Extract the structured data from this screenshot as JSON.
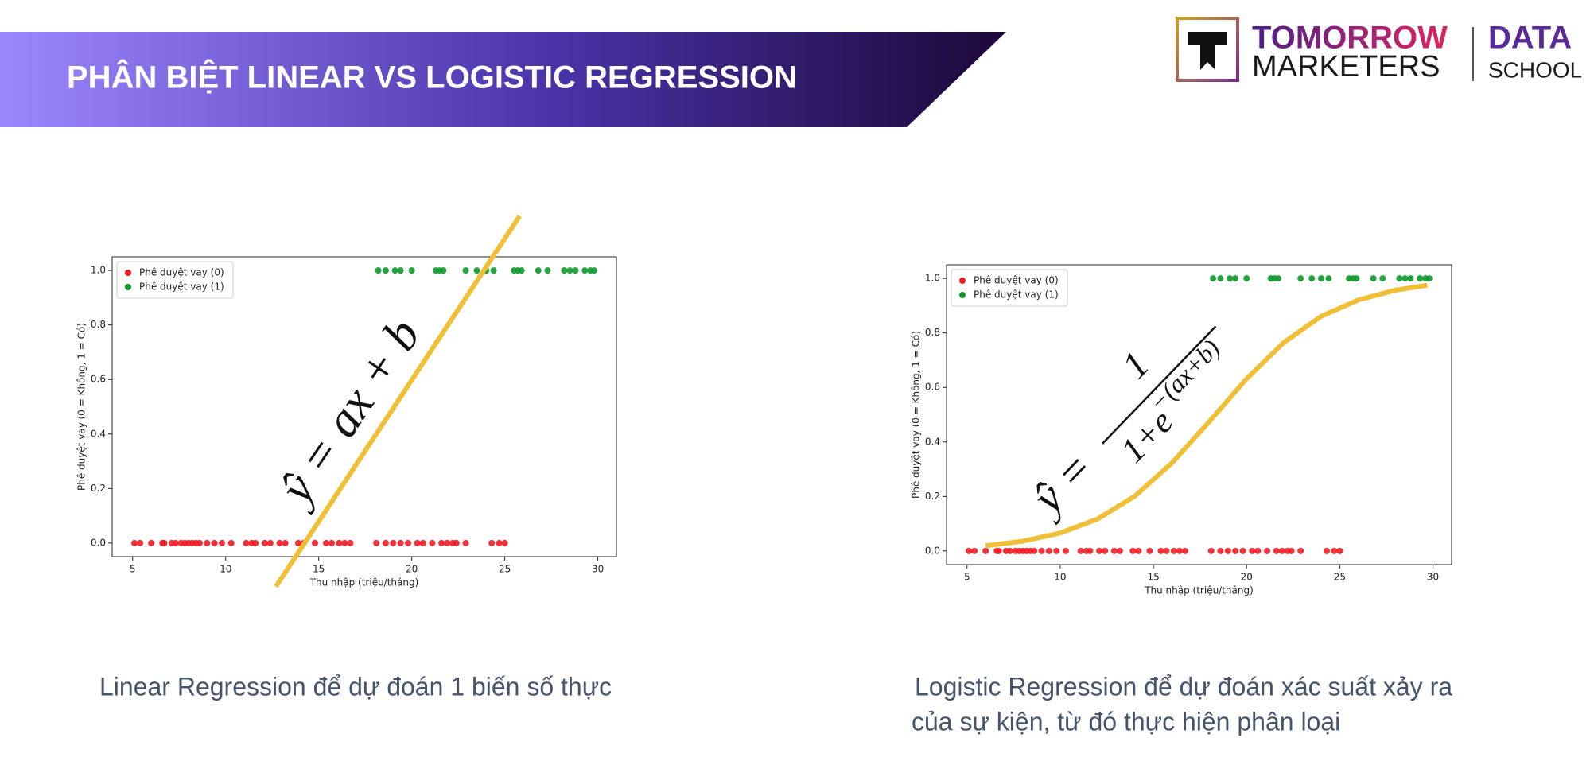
{
  "header": {
    "title": "PHÂN BIỆT LINEAR VS LOGISTIC REGRESSION"
  },
  "logo": {
    "line1": "TOMORROW",
    "line2": "MARKETERS",
    "side1": "DATA",
    "side2": "SCHOOL"
  },
  "captions": {
    "left": "Linear Regression để dự đoán 1 biến số thực",
    "right": [
      "Logistic Regression để dự đoán xác suất xảy ra",
      "của sự kiện, từ đó thực hiện phân loại"
    ]
  },
  "chart_data": [
    {
      "type": "scatter",
      "x_label": "Thu nhập (triệu/tháng)",
      "y_label": "Phê duyệt vay (0 = Không, 1 = Có)",
      "xlim": [
        3.9,
        31.0
      ],
      "ylim": [
        -0.05,
        1.05
      ],
      "xticks": [
        5,
        10,
        15,
        20,
        25,
        30
      ],
      "yticks": [
        {
          "value": 0,
          "label": "0.0"
        },
        {
          "value": 0.2,
          "label": "0.2"
        },
        {
          "value": 0.4,
          "label": "0.4"
        },
        {
          "value": 0.6,
          "label": "0.6"
        },
        {
          "value": 0.8,
          "label": "0.8"
        },
        {
          "value": 1,
          "label": "1.0"
        }
      ],
      "legend": "upper left",
      "annotation": {
        "text": "ŷ = ax + b"
      },
      "series": [
        {
          "name": "Phê duyệt vay (0)",
          "color": "#ee1c25",
          "type": "scatter",
          "x": [
            5.1,
            5.4,
            6.0,
            6.6,
            6.7,
            7.1,
            7.3,
            7.6,
            7.8,
            8.0,
            8.2,
            8.4,
            8.6,
            9.0,
            9.4,
            9.8,
            10.3,
            11.1,
            11.4,
            11.6,
            12.1,
            12.4,
            12.9,
            13.2,
            13.9,
            14.2,
            14.8,
            15.4,
            15.7,
            16.1,
            16.4,
            16.7,
            18.1,
            18.6,
            19.0,
            19.4,
            19.8,
            20.3,
            20.6,
            21.1,
            21.6,
            21.9,
            22.2,
            22.4,
            22.9,
            24.3,
            24.7,
            25.0
          ],
          "values": [
            0,
            0,
            0,
            0,
            0,
            0,
            0,
            0,
            0,
            0,
            0,
            0,
            0,
            0,
            0,
            0,
            0,
            0,
            0,
            0,
            0,
            0,
            0,
            0,
            0,
            0,
            0,
            0,
            0,
            0,
            0,
            0,
            0,
            0,
            0,
            0,
            0,
            0,
            0,
            0,
            0,
            0,
            0,
            0,
            0,
            0,
            0,
            0
          ]
        },
        {
          "name": "Phê duyệt vay (1)",
          "color": "#0b9a2a",
          "type": "scatter",
          "x": [
            18.2,
            18.6,
            19.1,
            19.4,
            20.0,
            21.3,
            21.5,
            21.7,
            22.9,
            23.5,
            24.0,
            24.4,
            25.5,
            25.7,
            25.9,
            26.8,
            27.3,
            28.2,
            28.5,
            28.8,
            29.3,
            29.6,
            29.8
          ],
          "values": [
            1,
            1,
            1,
            1,
            1,
            1,
            1,
            1,
            1,
            1,
            1,
            1,
            1,
            1,
            1,
            1,
            1,
            1,
            1,
            1,
            1,
            1,
            1
          ]
        },
        {
          "color": "#f0bf35",
          "type": "line",
          "x": [
            12.7,
            25.8
          ],
          "values": [
            -0.16,
            1.2
          ]
        }
      ]
    },
    {
      "type": "scatter",
      "x_label": "Thu nhập (triệu/tháng)",
      "y_label": "Phê duyệt vay (0 = Không, 1 = Có)",
      "xlim": [
        3.9,
        31.0
      ],
      "ylim": [
        -0.05,
        1.05
      ],
      "xticks": [
        5,
        10,
        15,
        20,
        25,
        30
      ],
      "yticks": [
        {
          "value": 0,
          "label": "0.0"
        },
        {
          "value": 0.2,
          "label": "0.2"
        },
        {
          "value": 0.4,
          "label": "0.4"
        },
        {
          "value": 0.6,
          "label": "0.6"
        },
        {
          "value": 0.8,
          "label": "0.8"
        },
        {
          "value": 1,
          "label": "1.0"
        }
      ],
      "legend": "upper left",
      "annotation": {
        "lhs": "ŷ =",
        "numerator": "1",
        "denominator": "1+e",
        "exponent": "−(ax+b)"
      },
      "series": [
        {
          "name": "Phê duyệt vay (0)",
          "color": "#ee1c25",
          "type": "scatter",
          "x": [
            5.1,
            5.4,
            6.0,
            6.6,
            6.7,
            7.1,
            7.3,
            7.6,
            7.8,
            8.0,
            8.2,
            8.4,
            8.6,
            9.0,
            9.4,
            9.8,
            10.3,
            11.1,
            11.4,
            11.6,
            12.1,
            12.4,
            12.9,
            13.2,
            13.9,
            14.2,
            14.8,
            15.4,
            15.7,
            16.1,
            16.4,
            16.7,
            18.1,
            18.6,
            19.0,
            19.4,
            19.8,
            20.3,
            20.6,
            21.1,
            21.6,
            21.9,
            22.2,
            22.4,
            22.9,
            24.3,
            24.7,
            25.0
          ],
          "values": [
            0,
            0,
            0,
            0,
            0,
            0,
            0,
            0,
            0,
            0,
            0,
            0,
            0,
            0,
            0,
            0,
            0,
            0,
            0,
            0,
            0,
            0,
            0,
            0,
            0,
            0,
            0,
            0,
            0,
            0,
            0,
            0,
            0,
            0,
            0,
            0,
            0,
            0,
            0,
            0,
            0,
            0,
            0,
            0,
            0,
            0,
            0,
            0
          ]
        },
        {
          "name": "Phê duyệt vay (1)",
          "color": "#0b9a2a",
          "type": "scatter",
          "x": [
            18.2,
            18.6,
            19.1,
            19.4,
            20.0,
            21.3,
            21.5,
            21.7,
            22.9,
            23.5,
            24.0,
            24.4,
            25.5,
            25.7,
            25.9,
            26.8,
            27.3,
            28.2,
            28.5,
            28.8,
            29.3,
            29.6,
            29.8
          ],
          "values": [
            1,
            1,
            1,
            1,
            1,
            1,
            1,
            1,
            1,
            1,
            1,
            1,
            1,
            1,
            1,
            1,
            1,
            1,
            1,
            1,
            1,
            1,
            1
          ]
        },
        {
          "color": "#f0bf35",
          "type": "line",
          "x": [
            6,
            8,
            10,
            12,
            14,
            16,
            18,
            20,
            22,
            24,
            26,
            28,
            29.7
          ],
          "values": [
            0.019,
            0.036,
            0.066,
            0.117,
            0.201,
            0.323,
            0.475,
            0.632,
            0.765,
            0.861,
            0.921,
            0.957,
            0.975
          ]
        }
      ]
    }
  ]
}
